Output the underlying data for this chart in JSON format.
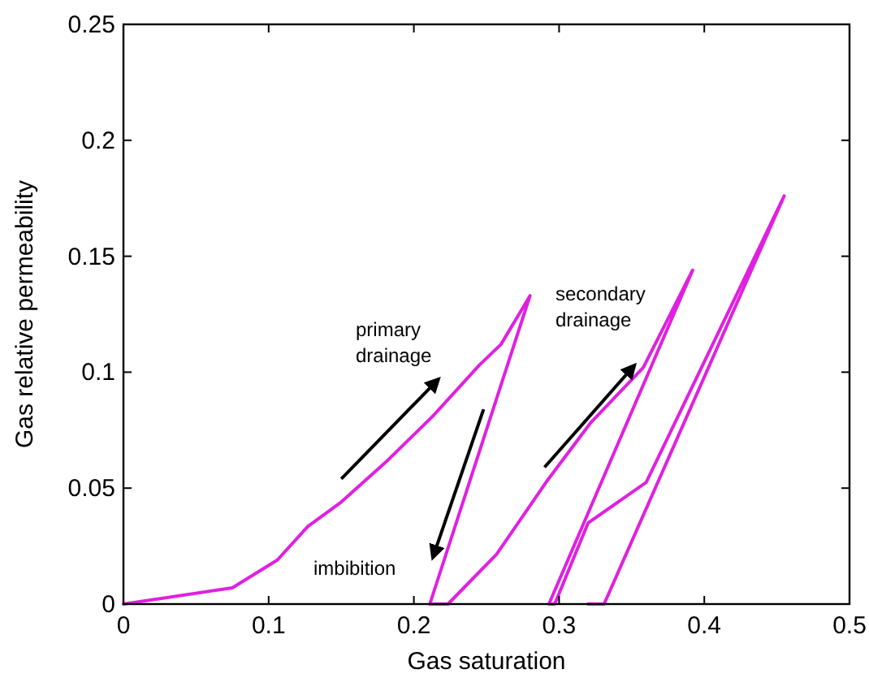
{
  "chart_data": {
    "type": "line",
    "xlabel": "Gas saturation",
    "ylabel": "Gas relative permeability",
    "xlim": [
      0,
      0.5
    ],
    "ylim": [
      0,
      0.25
    ],
    "xticks": [
      0,
      0.1,
      0.2,
      0.3,
      0.4,
      0.5
    ],
    "yticks": [
      0,
      0.05,
      0.1,
      0.15,
      0.2,
      0.25
    ],
    "grid": false,
    "marker": "none",
    "line_style": "solid",
    "series": [
      {
        "color": "#e020e0",
        "x": [
          0,
          0.075,
          0.106,
          0.127,
          0.15,
          0.182,
          0.213,
          0.245,
          0.26,
          0.28,
          0.211,
          0.2235,
          0.257,
          0.291,
          0.3215,
          0.358,
          0.392,
          0.293,
          0.297,
          0.32,
          0.36,
          0.455,
          0.331,
          0.32
        ],
        "values": [
          0,
          0.007,
          0.019,
          0.0335,
          0.044,
          0.062,
          0.081,
          0.103,
          0.112,
          0.133,
          0,
          0,
          0.0215,
          0.0525,
          0.078,
          0.102,
          0.144,
          0,
          0,
          0.035,
          0.0525,
          0.176,
          0,
          0
        ]
      }
    ],
    "annotations": [
      "primary\ndrainage",
      "secondary\ndrainage",
      "imbibition"
    ]
  }
}
